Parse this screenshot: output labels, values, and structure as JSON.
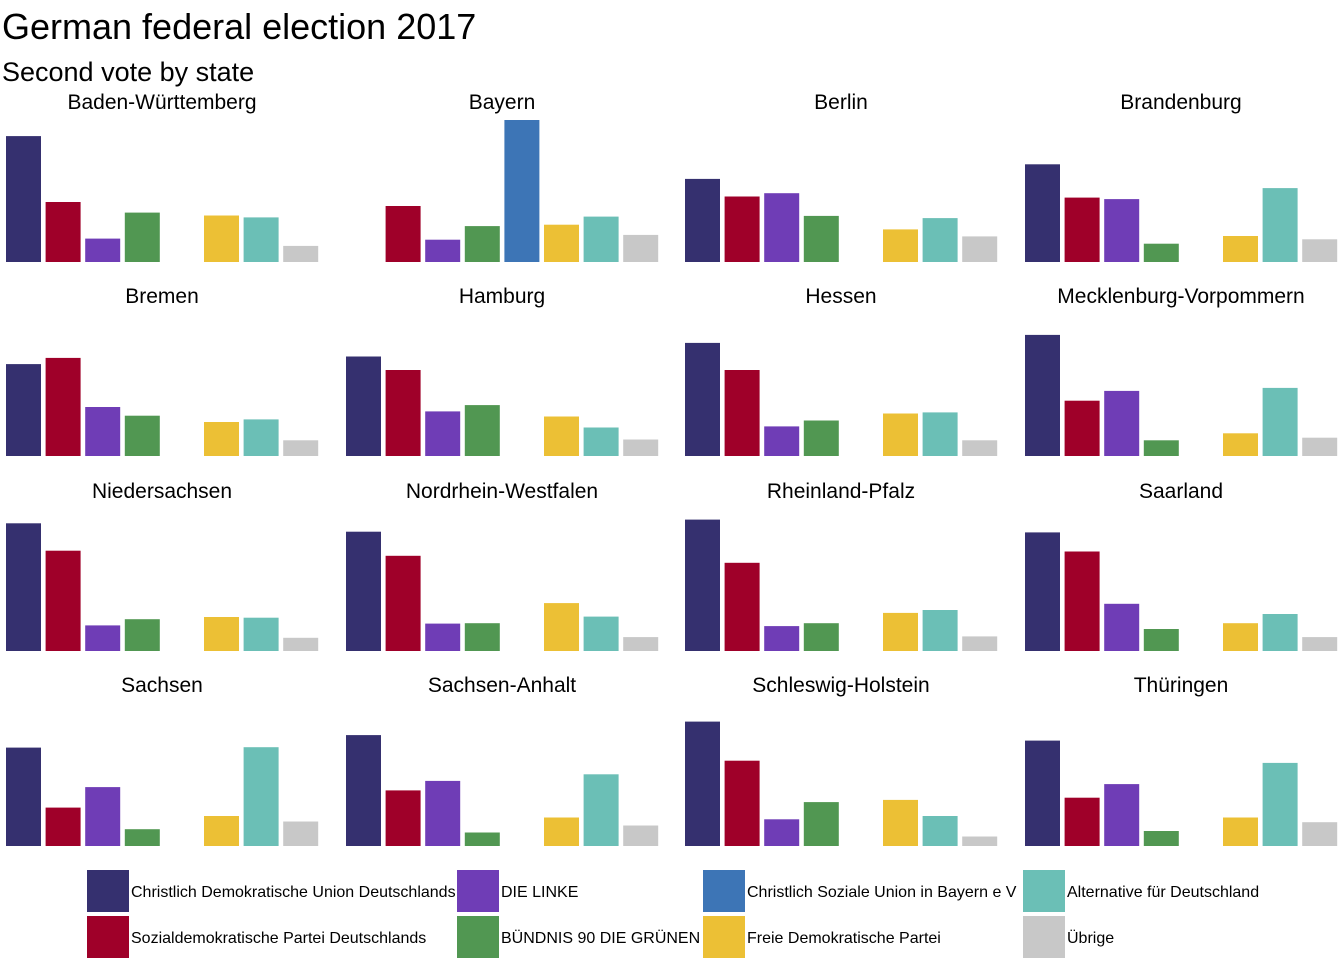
{
  "title": "German federal election 2017",
  "subtitle": "Second vote by state",
  "parties": [
    {
      "key": "cdu",
      "name": "Christlich Demokratische Union Deutschlands",
      "color": "#35306f"
    },
    {
      "key": "spd",
      "name": "Sozialdemokratische Partei Deutschlands",
      "color": "#9f0029"
    },
    {
      "key": "linke",
      "name": "DIE LINKE",
      "color": "#6f3db6"
    },
    {
      "key": "gruene",
      "name": "BÜNDNIS 90 DIE GRÜNEN",
      "color": "#519752"
    },
    {
      "key": "csu",
      "name": "Christlich Soziale Union in Bayern e V",
      "color": "#3d75b6"
    },
    {
      "key": "fdp",
      "name": "Freie Demokratische Partei",
      "color": "#ecc035"
    },
    {
      "key": "afd",
      "name": "Alternative für Deutschland",
      "color": "#6bbfb6"
    },
    {
      "key": "other",
      "name": "Übrige",
      "color": "#c8c8c8"
    }
  ],
  "chart_data": {
    "type": "bar",
    "categories": [
      "Christlich Demokratische Union Deutschlands",
      "Sozialdemokratische Partei Deutschlands",
      "DIE LINKE",
      "BÜNDNIS 90 DIE GRÜNEN",
      "Christlich Soziale Union in Bayern e V",
      "Freie Demokratische Partei",
      "Alternative für Deutschland",
      "Übrige"
    ],
    "facets": [
      {
        "state": "Baden-Württemberg",
        "values": [
          34.4,
          16.4,
          6.4,
          13.5,
          0,
          12.7,
          12.2,
          4.4
        ]
      },
      {
        "state": "Bayern",
        "values": [
          0,
          15.3,
          6.1,
          9.8,
          38.8,
          10.2,
          12.4,
          7.4
        ]
      },
      {
        "state": "Berlin",
        "values": [
          22.7,
          17.9,
          18.8,
          12.6,
          0,
          8.9,
          12.0,
          7.0
        ]
      },
      {
        "state": "Brandenburg",
        "values": [
          26.7,
          17.6,
          17.2,
          5.0,
          0,
          7.1,
          20.2,
          6.2
        ]
      },
      {
        "state": "Bremen",
        "values": [
          25.1,
          26.8,
          13.4,
          11.0,
          0,
          9.3,
          10.0,
          4.3
        ]
      },
      {
        "state": "Hamburg",
        "values": [
          27.2,
          23.5,
          12.2,
          13.9,
          0,
          10.8,
          7.8,
          4.5
        ]
      },
      {
        "state": "Hessen",
        "values": [
          30.9,
          23.5,
          8.1,
          9.7,
          0,
          11.6,
          11.9,
          4.3
        ]
      },
      {
        "state": "Mecklenburg-Vorpommern",
        "values": [
          33.1,
          15.1,
          17.8,
          4.3,
          0,
          6.2,
          18.6,
          5.0
        ]
      },
      {
        "state": "Niedersachsen",
        "values": [
          34.9,
          27.4,
          7.0,
          8.7,
          0,
          9.3,
          9.1,
          3.6
        ]
      },
      {
        "state": "Nordrhein-Westfalen",
        "values": [
          32.6,
          26.0,
          7.5,
          7.6,
          0,
          13.1,
          9.4,
          3.8
        ]
      },
      {
        "state": "Rheinland-Pfalz",
        "values": [
          35.9,
          24.1,
          6.8,
          7.6,
          0,
          10.4,
          11.2,
          4.0
        ]
      },
      {
        "state": "Saarland",
        "values": [
          32.4,
          27.2,
          12.9,
          6.0,
          0,
          7.6,
          10.1,
          3.8
        ]
      },
      {
        "state": "Sachsen",
        "values": [
          26.9,
          10.5,
          16.1,
          4.6,
          0,
          8.2,
          27.0,
          6.7
        ]
      },
      {
        "state": "Sachsen-Anhalt",
        "values": [
          30.3,
          15.2,
          17.8,
          3.7,
          0,
          7.8,
          19.6,
          5.6
        ]
      },
      {
        "state": "Schleswig-Holstein",
        "values": [
          34.0,
          23.3,
          7.3,
          12.0,
          0,
          12.6,
          8.2,
          2.6
        ]
      },
      {
        "state": "Thüringen",
        "values": [
          28.8,
          13.2,
          16.9,
          4.1,
          0,
          7.8,
          22.7,
          6.5
        ]
      }
    ],
    "ylim": [
      0,
      38.8
    ],
    "grid": false,
    "legend": "bottom"
  }
}
